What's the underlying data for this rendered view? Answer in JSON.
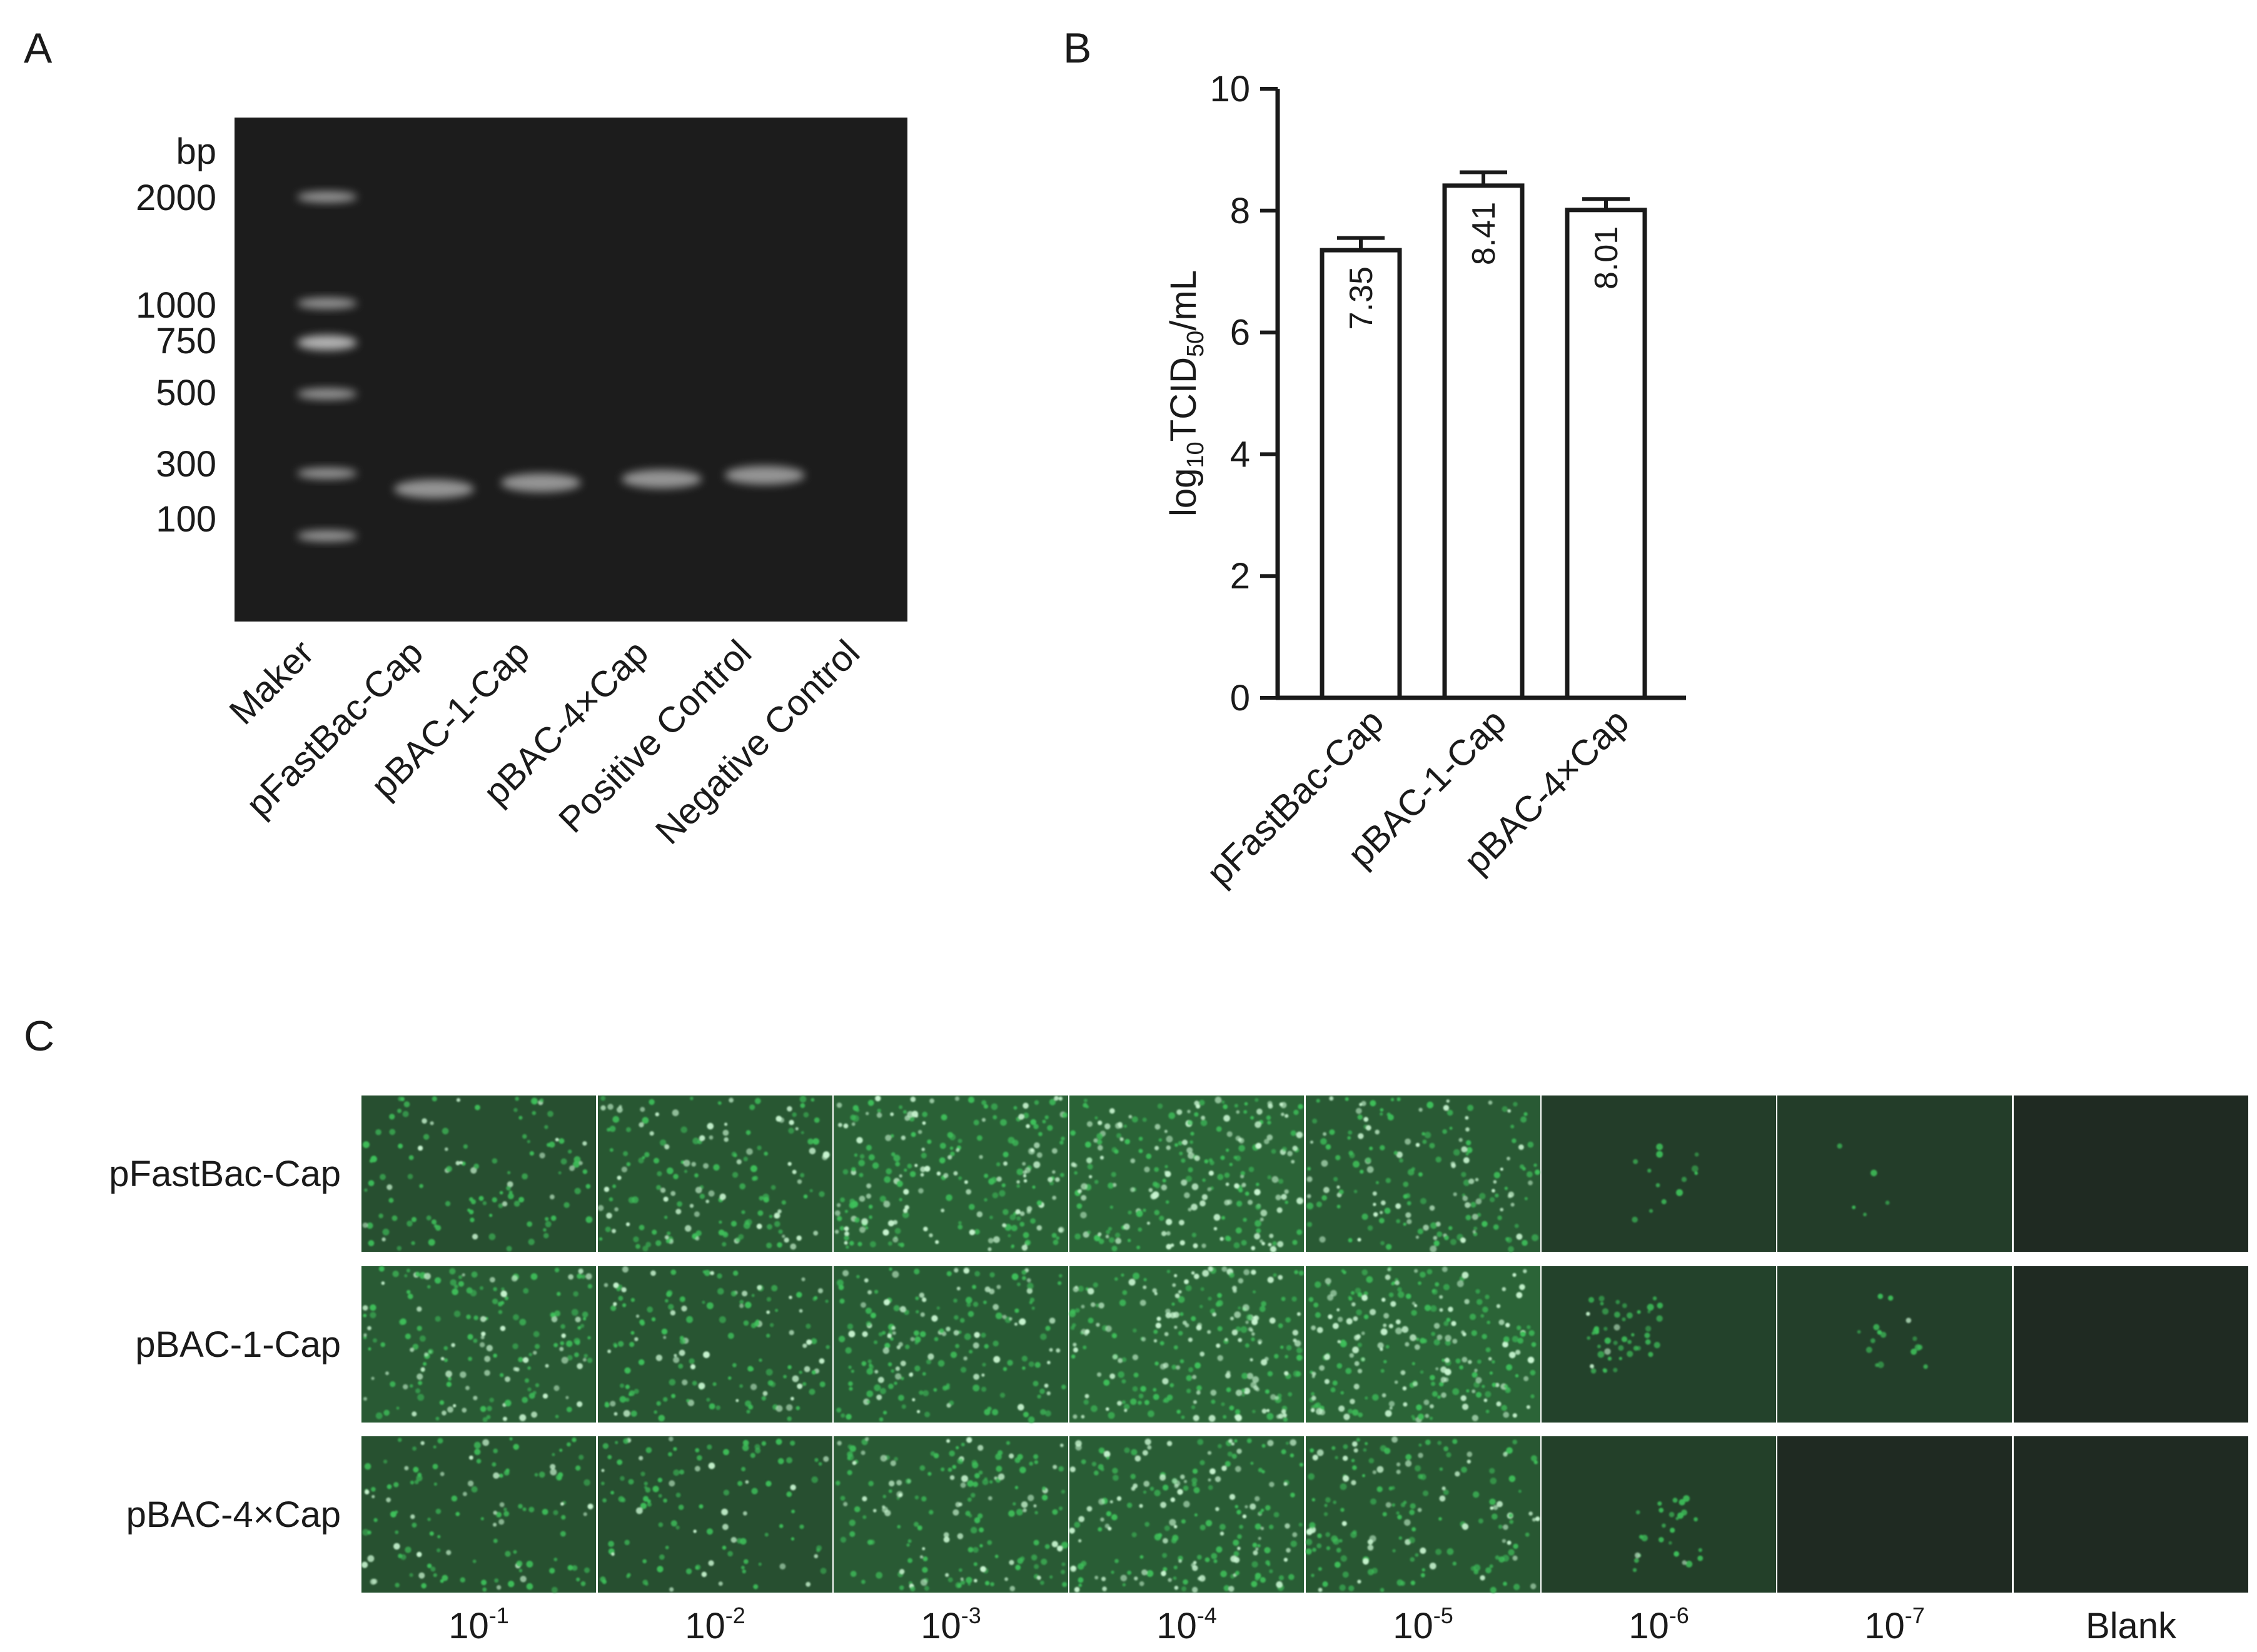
{
  "panels": {
    "A": {
      "letter": "A",
      "unit_label": "bp",
      "ladder_labels": [
        "2000",
        "1000",
        "750",
        "500",
        "300",
        "100"
      ],
      "lanes": [
        "Maker",
        "pFastBac-Cap",
        "pBAC-1-Cap",
        "pBAC-4×Cap",
        "Positive Control",
        "Negative Control"
      ],
      "band_present": [
        false,
        true,
        true,
        true,
        true,
        false
      ],
      "colors": {
        "gel": "#1c1c1c",
        "band": "#bdbdbd"
      }
    },
    "B": {
      "letter": "B"
    },
    "C": {
      "letter": "C",
      "rows": [
        "pFastBac-Cap",
        "pBAC-1-Cap",
        "pBAC-4×Cap"
      ],
      "columns": [
        {
          "base": "10",
          "exp": "-1"
        },
        {
          "base": "10",
          "exp": "-2"
        },
        {
          "base": "10",
          "exp": "-3"
        },
        {
          "base": "10",
          "exp": "-4"
        },
        {
          "base": "10",
          "exp": "-5"
        },
        {
          "base": "10",
          "exp": "-6"
        },
        {
          "base": "10",
          "exp": "-7"
        },
        {
          "base": "Blank",
          "exp": ""
        }
      ],
      "fluorescence_level": [
        [
          0.45,
          0.65,
          0.9,
          0.95,
          0.7,
          0.05,
          0.02,
          0.0
        ],
        [
          0.7,
          0.6,
          0.75,
          0.95,
          0.95,
          0.18,
          0.06,
          0.0
        ],
        [
          0.5,
          0.45,
          0.7,
          0.8,
          0.65,
          0.1,
          0.0,
          0.0
        ]
      ],
      "colors": {
        "cell": "#3ec05a",
        "bright": "#c8f5d0",
        "background": "#1f2a22"
      }
    }
  },
  "chart_data": {
    "type": "bar",
    "categories": [
      "pFastBac-Cap",
      "pBAC-1-Cap",
      "pBAC-4×Cap"
    ],
    "values": [
      7.35,
      8.41,
      8.01
    ],
    "errors": [
      0.2,
      0.22,
      0.18
    ],
    "value_labels": [
      "7.35",
      "8.41",
      "8.01"
    ],
    "ylabel_main": "log",
    "ylabel_sub1": "10",
    "ylabel_mid": "TCID",
    "ylabel_sub2": "50",
    "ylabel_end": "/mL",
    "ylim": [
      0,
      10
    ],
    "yticks": [
      "0",
      "2",
      "4",
      "6",
      "8",
      "10"
    ],
    "grid": false,
    "bar_fill": "#ffffff",
    "bar_stroke": "#1a1a1a"
  }
}
